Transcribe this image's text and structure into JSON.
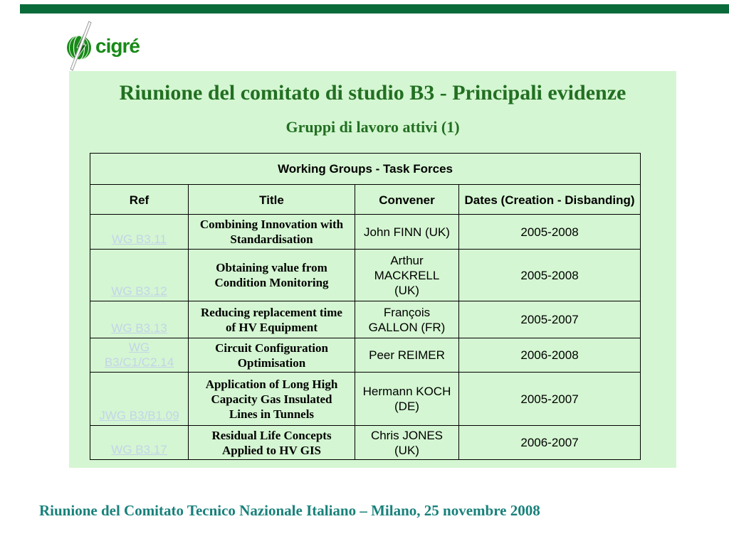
{
  "colors": {
    "top_bar": "#0a6b3a",
    "slide_background": "#d4f6d2",
    "title_green": "#226f22",
    "logo_green": "#178a17",
    "link_blue": "#c3d4e9",
    "footer_teal": "#18817b",
    "table_border": "#000000"
  },
  "logo": {
    "text": "cigré",
    "icon": "globe-with-needle-and-lightning-bolt-icon"
  },
  "slide": {
    "title": "Riunione del comitato di studio B3 - Principali evidenze",
    "subtitle": "Gruppi di lavoro attivi (1)"
  },
  "table": {
    "caption": "Working Groups - Task Forces",
    "columns": [
      "Ref",
      "Title",
      "Convener",
      "Dates (Creation - Disbanding)"
    ],
    "rows": [
      {
        "ref": "WG B3.11",
        "title": "Combining Innovation with\nStandardisation",
        "convener": "John FINN (UK)",
        "dates": "2005-2008"
      },
      {
        "ref": "WG B3.12",
        "title": "Obtaining value from\nCondition Monitoring",
        "convener": "Arthur\nMACKRELL\n(UK)",
        "dates": "2005-2008"
      },
      {
        "ref": "WG B3.13",
        "title": "Reducing replacement time\nof HV Equipment",
        "convener": "François\nGALLON (FR)",
        "dates": "2005-2007"
      },
      {
        "ref": "WG\nB3/C1/C2.14",
        "title": "Circuit Configuration\nOptimisation",
        "convener": "Peer REIMER",
        "dates": "2006-2008"
      },
      {
        "ref": "JWG B3/B1.09",
        "title": "Application of Long High\nCapacity Gas Insulated\nLines in Tunnels",
        "convener": "Hermann KOCH\n(DE)",
        "dates": "2005-2007"
      },
      {
        "ref": "WG B3.17",
        "title": "Residual Life Concepts\nApplied to HV GIS",
        "convener": "Chris JONES\n(UK)",
        "dates": "2006-2007"
      }
    ]
  },
  "footer": {
    "text": "Riunione del Comitato Tecnico Nazionale Italiano – Milano, 25 novembre 2008"
  }
}
